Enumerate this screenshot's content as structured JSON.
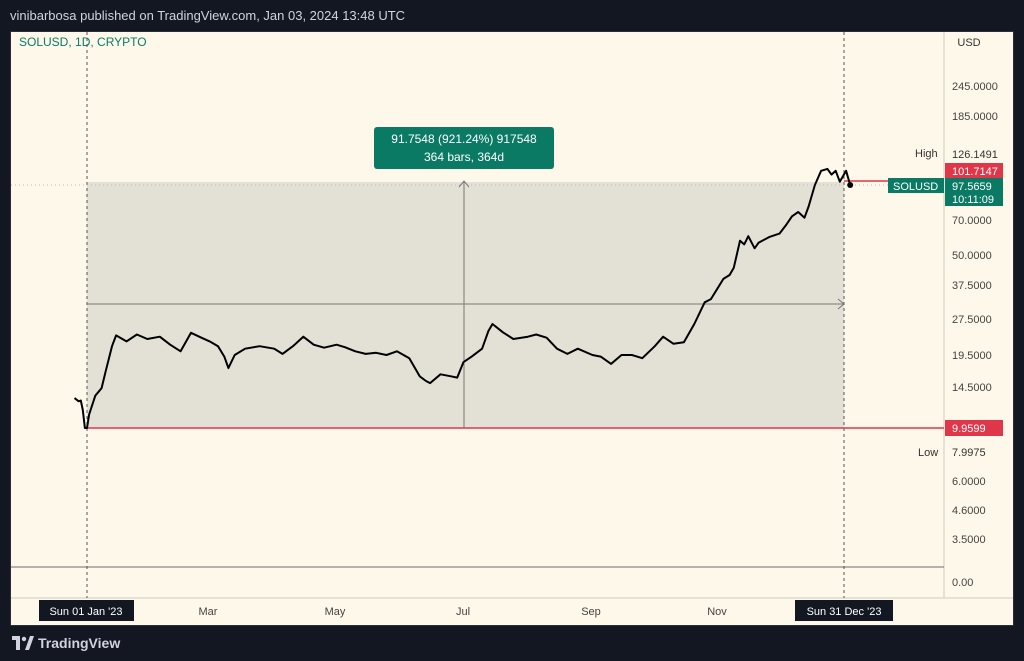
{
  "header": {
    "published_line": "vinibarbosa published on TradingView.com, Jan 03, 2024 13:48 UTC"
  },
  "footer": {
    "brand": "TradingView"
  },
  "chart_data": {
    "type": "line",
    "symbol_label": "SOLUSD, 1D, CRYPTO",
    "currency": "USD",
    "scale": "log",
    "x_ticks": [
      "Mar",
      "May",
      "Jul",
      "Sep",
      "Nov"
    ],
    "y_ticks": [
      "245.0000",
      "185.0000",
      "70.0000",
      "50.0000",
      "37.5000",
      "27.5000",
      "19.5000",
      "14.5000",
      "6.0000",
      "4.6000",
      "3.5000",
      "0.00"
    ],
    "x_start_label": "Sun 01 Jan '23",
    "x_end_label": "Sun 31 Dec '23",
    "high_label": "High",
    "high_value": "126.1491",
    "low_label": "Low",
    "low_value": "7.9975",
    "price_tags": {
      "high_line": "101.7147",
      "low_line": "9.9599",
      "last_symbol": "SOLUSD",
      "last_price": "97.5659",
      "countdown": "10:11:09"
    },
    "measure": {
      "line1": "91.7548 (921.24%) 917548",
      "line2": "364 bars, 364d",
      "start_price": 9.9599,
      "end_price": 101.7147
    },
    "colors": {
      "price_line": "#000000",
      "low_line": "#e0364a",
      "measure_box": "#0b7a64",
      "measure_fill": "#e3e1d6",
      "background": "#fdf8ea"
    },
    "series": [
      {
        "points": [
          [
            "2022-12-26",
            13.2
          ],
          [
            "2022-12-27",
            13.0
          ],
          [
            "2022-12-28",
            12.8
          ],
          [
            "2022-12-29",
            12.9
          ],
          [
            "2022-12-30",
            11.8
          ],
          [
            "2022-12-31",
            9.96
          ],
          [
            "2023-01-01",
            9.96
          ],
          [
            "2023-01-02",
            11.3
          ],
          [
            "2023-01-05",
            13.5
          ],
          [
            "2023-01-08",
            14.5
          ],
          [
            "2023-01-10",
            17.0
          ],
          [
            "2023-01-13",
            21.5
          ],
          [
            "2023-01-15",
            23.8
          ],
          [
            "2023-01-20",
            22.5
          ],
          [
            "2023-01-25",
            24.0
          ],
          [
            "2023-01-30",
            23.0
          ],
          [
            "2023-02-05",
            23.5
          ],
          [
            "2023-02-10",
            21.8
          ],
          [
            "2023-02-15",
            20.5
          ],
          [
            "2023-02-20",
            24.4
          ],
          [
            "2023-02-25",
            23.3
          ],
          [
            "2023-03-01",
            22.5
          ],
          [
            "2023-03-05",
            21.5
          ],
          [
            "2023-03-08",
            19.5
          ],
          [
            "2023-03-10",
            17.5
          ],
          [
            "2023-03-13",
            19.8
          ],
          [
            "2023-03-18",
            21.0
          ],
          [
            "2023-03-25",
            21.5
          ],
          [
            "2023-04-01",
            21.0
          ],
          [
            "2023-04-05",
            20.0
          ],
          [
            "2023-04-10",
            21.5
          ],
          [
            "2023-04-15",
            23.5
          ],
          [
            "2023-04-20",
            21.8
          ],
          [
            "2023-04-25",
            21.2
          ],
          [
            "2023-05-01",
            21.8
          ],
          [
            "2023-05-05",
            21.3
          ],
          [
            "2023-05-10",
            20.5
          ],
          [
            "2023-05-15",
            20.0
          ],
          [
            "2023-05-20",
            20.2
          ],
          [
            "2023-05-25",
            19.8
          ],
          [
            "2023-05-30",
            20.5
          ],
          [
            "2023-06-05",
            19.2
          ],
          [
            "2023-06-10",
            16.2
          ],
          [
            "2023-06-13",
            15.5
          ],
          [
            "2023-06-15",
            15.2
          ],
          [
            "2023-06-20",
            16.5
          ],
          [
            "2023-06-25",
            16.2
          ],
          [
            "2023-06-28",
            16.0
          ],
          [
            "2023-07-01",
            18.5
          ],
          [
            "2023-07-05",
            19.5
          ],
          [
            "2023-07-10",
            21.0
          ],
          [
            "2023-07-13",
            24.8
          ],
          [
            "2023-07-15",
            26.5
          ],
          [
            "2023-07-20",
            24.5
          ],
          [
            "2023-07-25",
            23.0
          ],
          [
            "2023-08-01",
            23.5
          ],
          [
            "2023-08-05",
            24.0
          ],
          [
            "2023-08-10",
            23.3
          ],
          [
            "2023-08-15",
            21.0
          ],
          [
            "2023-08-20",
            20.0
          ],
          [
            "2023-08-25",
            21.0
          ],
          [
            "2023-09-01",
            19.8
          ],
          [
            "2023-09-05",
            19.5
          ],
          [
            "2023-09-10",
            18.2
          ],
          [
            "2023-09-15",
            19.8
          ],
          [
            "2023-09-20",
            19.8
          ],
          [
            "2023-09-25",
            19.2
          ],
          [
            "2023-10-01",
            21.5
          ],
          [
            "2023-10-05",
            23.5
          ],
          [
            "2023-10-10",
            22.0
          ],
          [
            "2023-10-15",
            22.3
          ],
          [
            "2023-10-20",
            26.5
          ],
          [
            "2023-10-25",
            32.5
          ],
          [
            "2023-10-28",
            33.5
          ],
          [
            "2023-11-01",
            38.0
          ],
          [
            "2023-11-03",
            40.5
          ],
          [
            "2023-11-06",
            42.0
          ],
          [
            "2023-11-08",
            45.0
          ],
          [
            "2023-11-11",
            58.0
          ],
          [
            "2023-11-13",
            56.0
          ],
          [
            "2023-11-15",
            60.5
          ],
          [
            "2023-11-18",
            54.0
          ],
          [
            "2023-11-20",
            57.0
          ],
          [
            "2023-11-25",
            60.0
          ],
          [
            "2023-11-30",
            62.0
          ],
          [
            "2023-12-03",
            67.0
          ],
          [
            "2023-12-06",
            73.0
          ],
          [
            "2023-12-09",
            76.0
          ],
          [
            "2023-12-12",
            72.0
          ],
          [
            "2023-12-14",
            80.0
          ],
          [
            "2023-12-17",
            98.0
          ],
          [
            "2023-12-20",
            112.0
          ],
          [
            "2023-12-23",
            114.0
          ],
          [
            "2023-12-25",
            108.0
          ],
          [
            "2023-12-27",
            112.0
          ],
          [
            "2023-12-29",
            101.0
          ],
          [
            "2024-01-01",
            112.0
          ],
          [
            "2024-01-03",
            98.0
          ]
        ]
      }
    ]
  }
}
